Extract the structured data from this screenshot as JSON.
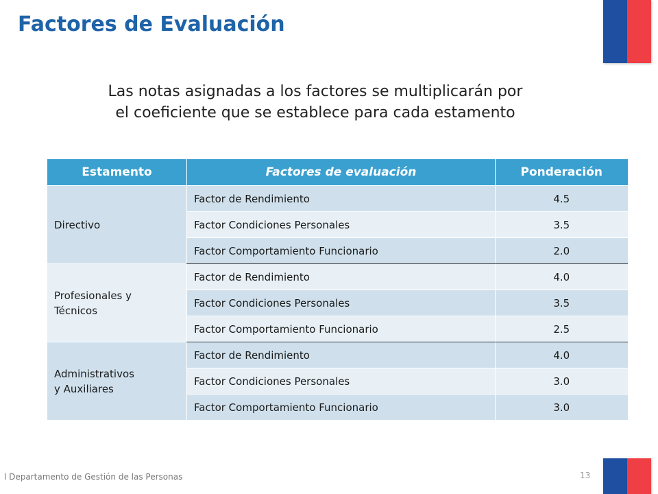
{
  "header": {
    "title": "Factores de Evaluación"
  },
  "intro": {
    "line1": "Las notas asignadas a los factores se multiplicarán por",
    "line2": "el coeficiente que se establece para cada estamento"
  },
  "table": {
    "headers": [
      "Estamento",
      "Factores de evaluación",
      "Ponderación"
    ],
    "groups": [
      {
        "estamento": "Directivo",
        "rows": [
          {
            "factor": "Factor de Rendimiento",
            "ponderacion": "4.5"
          },
          {
            "factor": "Factor Condiciones Personales",
            "ponderacion": "3.5"
          },
          {
            "factor": "Factor Comportamiento Funcionario",
            "ponderacion": "2.0"
          }
        ]
      },
      {
        "estamento_line1": "Profesionales y",
        "estamento_line2": "Técnicos",
        "rows": [
          {
            "factor": "Factor de Rendimiento",
            "ponderacion": "4.0"
          },
          {
            "factor": "Factor Condiciones Personales",
            "ponderacion": "3.5"
          },
          {
            "factor": "Factor Comportamiento Funcionario",
            "ponderacion": "2.5"
          }
        ]
      },
      {
        "estamento_line1": "Administrativos",
        "estamento_line2": "y Auxiliares",
        "rows": [
          {
            "factor": "Factor de Rendimiento",
            "ponderacion": "4.0"
          },
          {
            "factor": "Factor Condiciones Personales",
            "ponderacion": "3.0"
          },
          {
            "factor": "Factor Comportamiento Funcionario",
            "ponderacion": "3.0"
          }
        ]
      }
    ]
  },
  "footer": {
    "text": "l Departamento de Gestión de las Personas",
    "page": "13"
  },
  "colors": {
    "title": "#1f63a8",
    "header_bg": "#3aa0d0",
    "row_dark": "#cfe0ec",
    "row_light": "#e8f0f6",
    "flag_blue": "#1f4fa0",
    "flag_red": "#ef3e44"
  }
}
